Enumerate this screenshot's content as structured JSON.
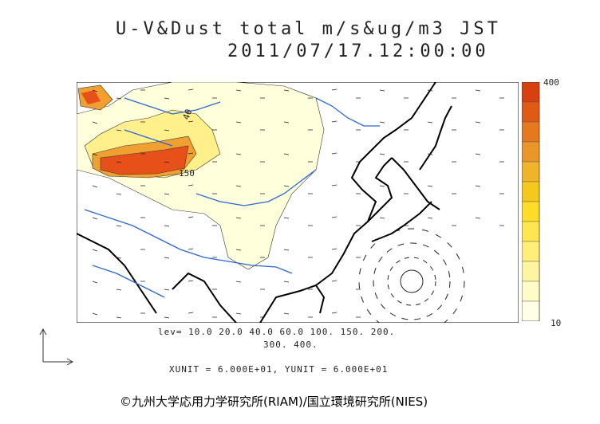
{
  "title": {
    "line1": "U-V&Dust total m/s&ug/m3 JST",
    "line2": "2011/07/17.12:00:00"
  },
  "colorbar": {
    "max_label": "400",
    "min_label": "10",
    "colors": [
      "#ffffe6",
      "#fffcc8",
      "#fff5a0",
      "#ffee78",
      "#ffe650",
      "#ffdc28",
      "#f5c81e",
      "#f0b428",
      "#eb9628",
      "#e6781e",
      "#e05a14",
      "#d84010"
    ]
  },
  "contour_levels": {
    "line1": "lev= 10.0 20.0 40.0 60.0 100. 150. 200.",
    "line2": "300. 400."
  },
  "map_labels": {
    "label_150": "150",
    "label_40": "40"
  },
  "units": "XUNIT = 6.000E+01, YUNIT = 6.000E+01",
  "copyright": "©九州大学応用力学研究所(RIAM)/国立環境研究所(NIES)"
}
